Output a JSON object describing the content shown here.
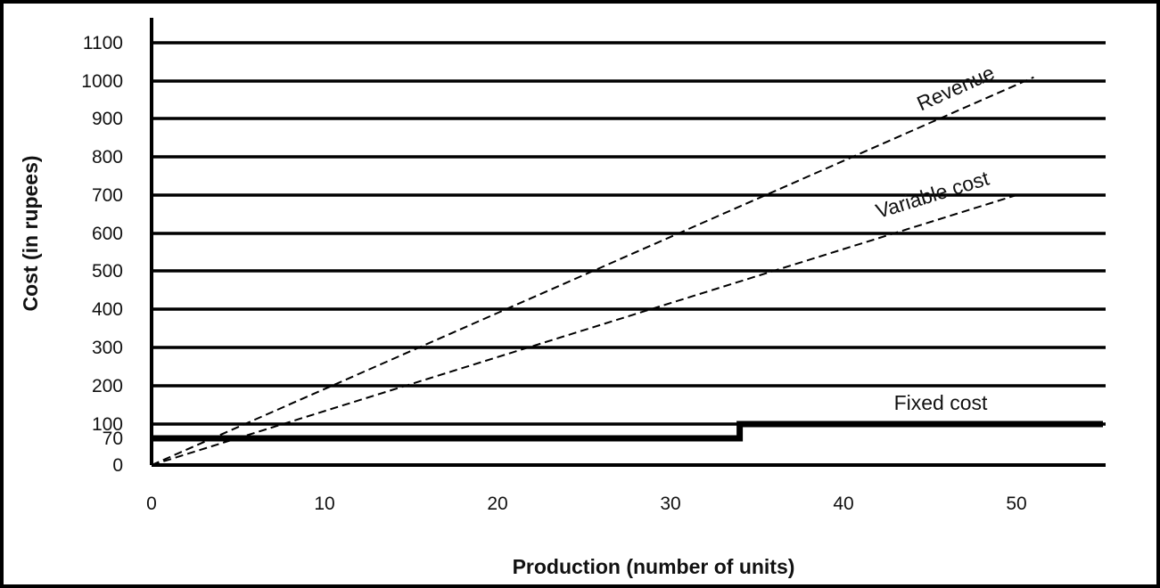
{
  "chart_data": {
    "type": "line",
    "title": "",
    "xlabel": "Production (number of units)",
    "ylabel": "Cost (in rupees)",
    "xlim": [
      0,
      55
    ],
    "x_ticks": [
      0,
      10,
      20,
      30,
      40,
      50
    ],
    "y_ticks": [
      0,
      70,
      100,
      200,
      300,
      400,
      500,
      600,
      700,
      800,
      900,
      1000,
      1100
    ],
    "grid": "horizontal",
    "series": [
      {
        "name": "Revenue",
        "style": "dashed",
        "x": [
          0,
          51
        ],
        "y": [
          0,
          1010
        ]
      },
      {
        "name": "Variable cost",
        "style": "dashed",
        "x": [
          0,
          50
        ],
        "y": [
          0,
          700
        ]
      },
      {
        "name": "Fixed cost",
        "style": "solid-step",
        "x": [
          0,
          34,
          34,
          55
        ],
        "y": [
          70,
          70,
          100,
          100
        ]
      }
    ]
  },
  "colors": {
    "line": "#000000",
    "background": "#ffffff"
  }
}
